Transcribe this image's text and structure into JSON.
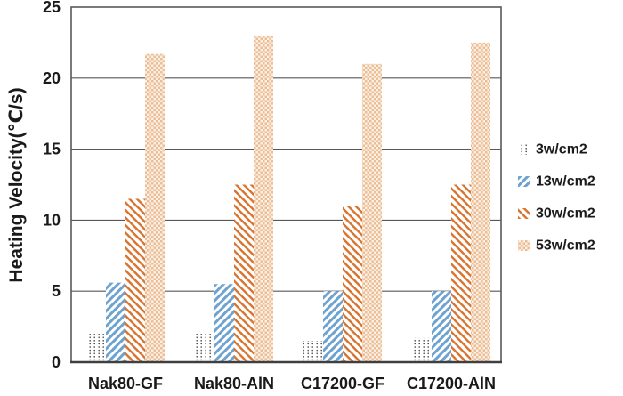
{
  "chart_data": {
    "type": "bar",
    "ylabel": "Heating Velocity(℃/s)",
    "xlabel": "",
    "ylim": [
      0,
      25
    ],
    "yticks": [
      0,
      5,
      10,
      15,
      20,
      25
    ],
    "gridlines": [
      5,
      10,
      15,
      20
    ],
    "grid": "horizontal",
    "legend_position": "right",
    "categories": [
      "Nak80-GF",
      "Nak80-AlN",
      "C17200-GF",
      "C17200-AlN"
    ],
    "series": [
      {
        "name": "3w/cm2",
        "pattern": "black-dots",
        "values": [
          2.0,
          2.0,
          1.5,
          1.7
        ]
      },
      {
        "name": "13w/cm2",
        "pattern": "blue-diagonal",
        "values": [
          5.6,
          5.5,
          5.0,
          5.0
        ]
      },
      {
        "name": "30w/cm2",
        "pattern": "orange-diagonal",
        "values": [
          11.5,
          12.5,
          11.0,
          12.5
        ]
      },
      {
        "name": "53w/cm2",
        "pattern": "orange-checker",
        "values": [
          21.7,
          23.0,
          21.0,
          22.5
        ]
      }
    ],
    "colors": {
      "blue_stripe": "#6FA3CF",
      "orange_stripe": "#D8732E",
      "checker_orange": "#EDBD95",
      "checker_cream": "#FAF0E5",
      "dot_black": "#3A3A3A",
      "axis_gray": "#595959",
      "axis_dark": "#3F3F3F",
      "text": "#1A1A1A"
    }
  }
}
